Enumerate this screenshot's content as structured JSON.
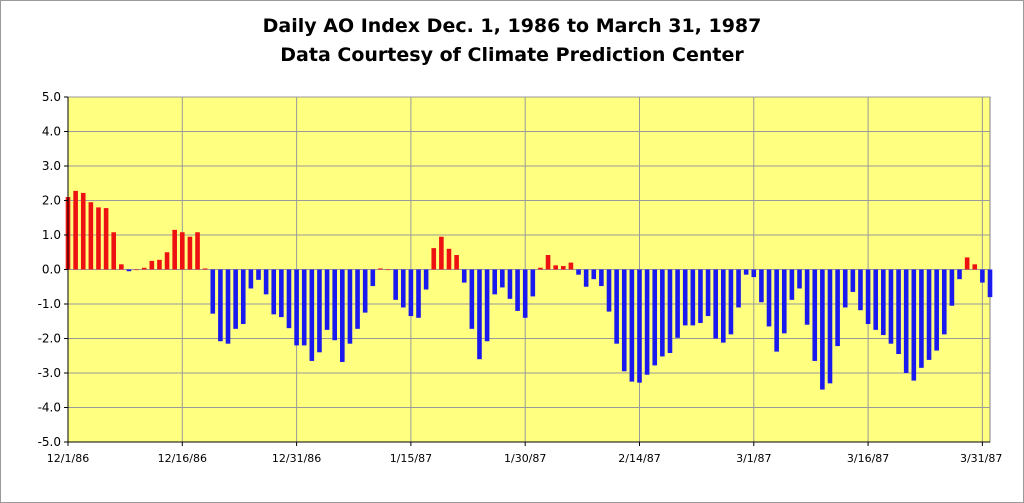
{
  "chart_data": {
    "type": "bar",
    "title": "Daily AO Index Dec. 1, 1986 to March 31, 1987",
    "subtitle": "Data Courtesy of Climate Prediction Center",
    "xlabel": "",
    "ylabel": "",
    "ylim": [
      -5,
      5
    ],
    "ytick_values": [
      5,
      4,
      3,
      2,
      1,
      0,
      -1,
      -2,
      -3,
      -4,
      -5
    ],
    "ytick_labels": [
      "5.0",
      "4.0",
      "3.0",
      "2.0",
      "1.0",
      "0.0",
      "-1.0",
      "-2.0",
      "-3.0",
      "-4.0",
      "-5.0"
    ],
    "xtick_labels": [
      {
        "label": "12/1/86",
        "day": 0
      },
      {
        "label": "12/16/86",
        "day": 15
      },
      {
        "label": "12/31/86",
        "day": 30
      },
      {
        "label": "1/15/87",
        "day": 45
      },
      {
        "label": "1/30/87",
        "day": 60
      },
      {
        "label": "2/14/87",
        "day": 75
      },
      {
        "label": "3/1/87",
        "day": 90
      },
      {
        "label": "3/16/87",
        "day": 105
      },
      {
        "label": "3/31/87",
        "day": 120
      }
    ],
    "grid": true,
    "colors": {
      "positive": "#ee1111",
      "negative": "#1a1aee",
      "plot_background": "#ffff80",
      "gridline": "#9a9a9a"
    },
    "series": [
      {
        "name": "Daily AO Index",
        "values": [
          2.1,
          2.28,
          2.22,
          1.95,
          1.8,
          1.78,
          1.08,
          0.15,
          -0.05,
          0.0,
          0.05,
          0.25,
          0.28,
          0.5,
          1.15,
          1.08,
          0.95,
          1.08,
          0.03,
          -1.28,
          -2.08,
          -2.15,
          -1.72,
          -1.58,
          -0.55,
          -0.3,
          -0.72,
          -1.3,
          -1.38,
          -1.7,
          -2.2,
          -2.2,
          -2.65,
          -2.4,
          -1.75,
          -2.05,
          -2.68,
          -2.15,
          -1.72,
          -1.25,
          -0.48,
          0.03,
          0.0,
          -0.88,
          -1.1,
          -1.35,
          -1.4,
          -0.58,
          0.62,
          0.95,
          0.6,
          0.42,
          -0.38,
          -1.72,
          -2.6,
          -2.08,
          -0.72,
          -0.52,
          -0.85,
          -1.2,
          -1.4,
          -0.78,
          0.05,
          0.42,
          0.12,
          0.1,
          0.2,
          -0.15,
          -0.5,
          -0.28,
          -0.48,
          -1.22,
          -2.15,
          -2.95,
          -3.25,
          -3.28,
          -3.05,
          -2.78,
          -2.52,
          -2.42,
          -1.98,
          -1.62,
          -1.62,
          -1.55,
          -1.35,
          -2.0,
          -2.12,
          -1.88,
          -1.1,
          -0.15,
          -0.22,
          -0.95,
          -1.65,
          -2.38,
          -1.85,
          -0.88,
          -0.55,
          -1.6,
          -2.65,
          -3.48,
          -3.3,
          -2.22,
          -1.1,
          -0.65,
          -1.18,
          -1.58,
          -1.75,
          -1.9,
          -2.15,
          -2.45,
          -3.0,
          -3.22,
          -2.85,
          -2.62,
          -2.35,
          -1.88,
          -1.05,
          -0.28,
          0.35,
          0.15,
          -0.38,
          -0.8
        ]
      }
    ]
  }
}
